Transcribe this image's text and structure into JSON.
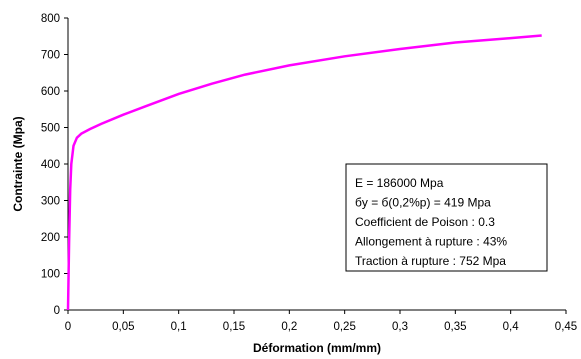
{
  "chart_data": {
    "type": "line",
    "title": "",
    "xlabel": "Déformation (mm/mm)",
    "ylabel": "Contrainte (Mpa)",
    "xlim": [
      0,
      0.45
    ],
    "ylim": [
      0,
      800
    ],
    "xticks": [
      "0",
      "0,05",
      "0,1",
      "0,15",
      "0,2",
      "0,25",
      "0,3",
      "0,35",
      "0,4",
      "0,45"
    ],
    "yticks": [
      "0",
      "100",
      "200",
      "300",
      "400",
      "500",
      "600",
      "700",
      "800"
    ],
    "grid": false,
    "color": "#ff00ff",
    "series": [
      {
        "x": [
          0,
          0.001,
          0.002,
          0.003,
          0.005,
          0.008,
          0.012,
          0.02,
          0.03,
          0.05,
          0.07,
          0.1,
          0.13,
          0.16,
          0.2,
          0.25,
          0.3,
          0.35,
          0.38,
          0.4,
          0.428
        ],
        "y": [
          0,
          186,
          330,
          400,
          450,
          472,
          483,
          496,
          510,
          535,
          558,
          592,
          620,
          645,
          670,
          695,
          715,
          733,
          740,
          745,
          752
        ]
      }
    ],
    "annotations": [
      "E = 186000 Mpa",
      "бy = б(0,2%p) =  419 Mpa",
      "Coefficient de Poison : 0.3",
      "Allongement à rupture : 43%",
      "Traction à rupture : 752 Mpa"
    ]
  }
}
